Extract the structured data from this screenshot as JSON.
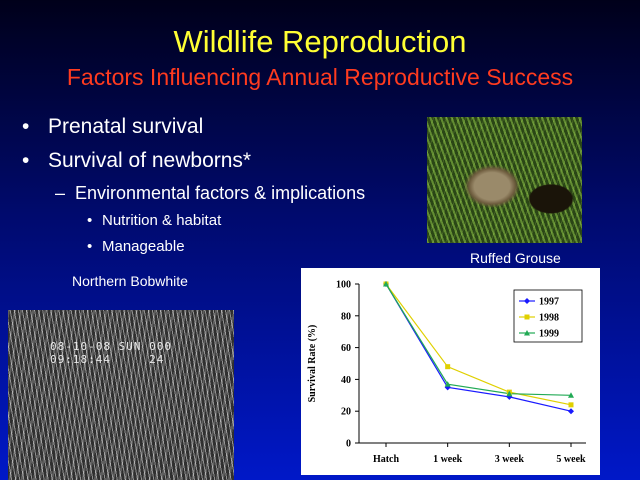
{
  "slide": {
    "title": "Wildlife Reproduction",
    "subtitle": "Factors Influencing Annual Reproductive Success",
    "bullets": [
      "Prenatal survival",
      "Survival of newborns*"
    ],
    "sub_bullet": "Environmental factors & implications",
    "sub_sub_bullets": [
      "Nutrition & habitat",
      "Manageable"
    ],
    "caption_grouse": "Ruffed Grouse",
    "caption_bobwhite": "Northern Bobwhite",
    "camera_stamp_line1": "08-10-08 SUN 000",
    "camera_stamp_line2": "09:18:44     24"
  },
  "chart_data": {
    "type": "line",
    "categories": [
      "Hatch",
      "1 week",
      "3 week",
      "5 week"
    ],
    "ylabel": "Survival Rate (%)",
    "xlabel": "",
    "ylim": [
      0,
      100
    ],
    "yticks": [
      "0",
      "20",
      "40",
      "60",
      "80",
      "100"
    ],
    "legend_position": "top-right",
    "series": [
      {
        "name": "1997",
        "color": "#1a1aff",
        "marker": "diamond",
        "values": [
          100,
          35,
          29,
          20
        ]
      },
      {
        "name": "1998",
        "color": "#e0d000",
        "marker": "square",
        "values": [
          100,
          48,
          32,
          24
        ]
      },
      {
        "name": "1999",
        "color": "#22aa55",
        "marker": "triangle",
        "values": [
          100,
          37,
          31,
          30
        ]
      }
    ]
  }
}
